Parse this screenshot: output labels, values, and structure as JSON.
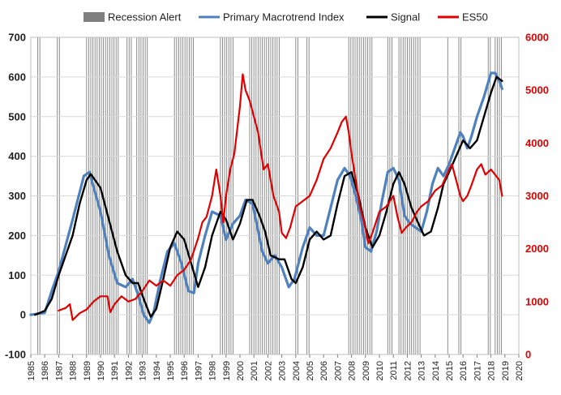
{
  "chart_data": {
    "type": "line",
    "title": "",
    "xlabel": "",
    "ylabel": "",
    "x_ticks": [
      "1985",
      "1986",
      "1987",
      "1988",
      "1989",
      "1990",
      "1991",
      "1992",
      "1993",
      "1994",
      "1995",
      "1996",
      "1997",
      "1998",
      "1999",
      "2000",
      "2001",
      "2002",
      "2003",
      "2004",
      "2005",
      "2006",
      "2007",
      "2008",
      "2009",
      "2010",
      "2011",
      "2012",
      "2013",
      "2014",
      "2015",
      "2016",
      "2017",
      "2018",
      "2019",
      "2020"
    ],
    "xlim": [
      1985,
      2020
    ],
    "ylim_left": [
      -100,
      700
    ],
    "yticks_left": [
      "-100",
      "0",
      "100",
      "200",
      "300",
      "400",
      "500",
      "600",
      "700"
    ],
    "ylim_right": [
      0,
      6000
    ],
    "yticks_right": [
      "0",
      "1000",
      "2000",
      "3000",
      "4000",
      "5000",
      "6000"
    ],
    "grid": "horizontal",
    "legend_placement": "top",
    "legend": [
      {
        "label": "Recession Alert",
        "color": "#7f7f7f",
        "kind": "bar"
      },
      {
        "label": "Primary Macrotrend Index",
        "color": "#4f81bd",
        "kind": "line"
      },
      {
        "label": "Signal",
        "color": "#000000",
        "kind": "line"
      },
      {
        "label": "ES50",
        "color": "#e00000",
        "kind": "line"
      }
    ],
    "recession_alert_periods": [
      [
        1985.5,
        1985.7
      ],
      [
        1986.9,
        1987.2
      ],
      [
        1989.0,
        1991.4
      ],
      [
        1991.9,
        1992.3
      ],
      [
        1992.6,
        1993.5
      ],
      [
        1995.3,
        1996.8
      ],
      [
        1998.6,
        1999.6
      ],
      [
        2000.7,
        2002.9
      ],
      [
        2004.0,
        2004.3
      ],
      [
        2004.8,
        2005.0
      ],
      [
        2007.8,
        2009.6
      ],
      [
        2010.6,
        2011.0
      ],
      [
        2011.4,
        2013.0
      ],
      [
        2014.9,
        2015.0
      ],
      [
        2015.7,
        2016.0
      ],
      [
        2017.8,
        2018.0
      ],
      [
        2018.3,
        2018.8
      ]
    ],
    "series": [
      {
        "name": "Primary Macrotrend Index",
        "axis": "left",
        "color": "#4f81bd",
        "x": [
          1985.0,
          1986.0,
          1986.5,
          1987.0,
          1988.0,
          1988.8,
          1989.2,
          1990.0,
          1990.6,
          1991.2,
          1991.8,
          1992.3,
          1992.7,
          1993.1,
          1993.5,
          1993.8,
          1994.3,
          1994.8,
          1995.3,
          1995.8,
          1996.3,
          1996.7,
          1997.0,
          1997.5,
          1998.0,
          1998.6,
          1999.0,
          1999.5,
          2000.0,
          2000.4,
          2000.9,
          2001.2,
          2001.6,
          2002.0,
          2002.5,
          2003.0,
          2003.5,
          2003.9,
          2004.5,
          2005.0,
          2005.5,
          2006.0,
          2006.5,
          2007.0,
          2007.5,
          2007.9,
          2008.3,
          2008.7,
          2009.0,
          2009.4,
          2009.8,
          2010.2,
          2010.6,
          2011.0,
          2011.4,
          2011.8,
          2012.2,
          2012.6,
          2013.0,
          2013.4,
          2013.8,
          2014.2,
          2014.6,
          2015.0,
          2015.4,
          2015.8,
          2016.0,
          2016.3,
          2016.6,
          2017.0,
          2017.5,
          2018.0,
          2018.3,
          2018.6,
          2018.8
        ],
        "y": [
          0,
          5,
          60,
          110,
          240,
          350,
          360,
          260,
          150,
          80,
          70,
          90,
          50,
          0,
          -20,
          5,
          90,
          160,
          180,
          130,
          60,
          55,
          130,
          200,
          260,
          250,
          190,
          230,
          250,
          290,
          280,
          230,
          160,
          130,
          150,
          120,
          70,
          90,
          170,
          220,
          200,
          200,
          270,
          340,
          370,
          350,
          300,
          240,
          170,
          160,
          210,
          290,
          360,
          370,
          340,
          250,
          230,
          220,
          210,
          260,
          330,
          370,
          350,
          380,
          420,
          460,
          450,
          420,
          450,
          500,
          550,
          610,
          610,
          590,
          570
        ]
      },
      {
        "name": "Signal",
        "axis": "left",
        "color": "#000000",
        "x": [
          1985.3,
          1986.0,
          1986.5,
          1987.0,
          1988.0,
          1988.5,
          1989.0,
          1989.3,
          1990.0,
          1990.6,
          1991.2,
          1991.8,
          1992.3,
          1992.7,
          1993.1,
          1993.6,
          1994.0,
          1994.5,
          1995.0,
          1995.5,
          1996.0,
          1996.5,
          1997.0,
          1997.5,
          1998.0,
          1998.6,
          1999.0,
          1999.5,
          2000.0,
          2000.5,
          2000.9,
          2001.4,
          2001.8,
          2002.2,
          2002.8,
          2003.2,
          2003.7,
          2004.0,
          2004.5,
          2005.0,
          2005.5,
          2006.0,
          2006.5,
          2007.0,
          2007.5,
          2008.0,
          2008.5,
          2009.0,
          2009.5,
          2010.0,
          2010.5,
          2011.0,
          2011.4,
          2011.8,
          2012.3,
          2012.8,
          2013.2,
          2013.7,
          2014.2,
          2014.6,
          2015.0,
          2015.5,
          2016.0,
          2016.5,
          2017.0,
          2017.5,
          2018.0,
          2018.4,
          2018.8
        ],
        "y": [
          0,
          10,
          40,
          100,
          200,
          280,
          340,
          355,
          320,
          240,
          160,
          100,
          80,
          80,
          40,
          -5,
          15,
          90,
          170,
          210,
          190,
          130,
          70,
          120,
          200,
          260,
          240,
          190,
          230,
          290,
          290,
          250,
          210,
          150,
          140,
          140,
          90,
          80,
          120,
          190,
          210,
          190,
          200,
          280,
          350,
          360,
          300,
          220,
          170,
          200,
          260,
          330,
          360,
          330,
          270,
          230,
          200,
          210,
          270,
          330,
          360,
          400,
          440,
          420,
          440,
          500,
          560,
          600,
          590
        ]
      },
      {
        "name": "ES50",
        "axis": "right",
        "color": "#e00000",
        "x": [
          1987.0,
          1987.5,
          1987.8,
          1988.0,
          1988.5,
          1989.0,
          1989.5,
          1990.0,
          1990.5,
          1990.7,
          1991.0,
          1991.5,
          1992.0,
          1992.5,
          1993.0,
          1993.5,
          1994.0,
          1994.5,
          1995.0,
          1995.5,
          1996.0,
          1996.5,
          1997.0,
          1997.3,
          1997.6,
          1998.0,
          1998.3,
          1998.6,
          1998.8,
          1999.0,
          1999.3,
          1999.6,
          2000.0,
          2000.2,
          2000.4,
          2000.7,
          2001.0,
          2001.3,
          2001.7,
          2002.0,
          2002.4,
          2002.8,
          2003.0,
          2003.3,
          2003.6,
          2004.0,
          2004.5,
          2005.0,
          2005.5,
          2006.0,
          2006.5,
          2007.0,
          2007.3,
          2007.6,
          2007.8,
          2008.0,
          2008.3,
          2008.6,
          2008.9,
          2009.2,
          2009.5,
          2010.0,
          2010.5,
          2011.0,
          2011.3,
          2011.6,
          2011.9,
          2012.3,
          2012.7,
          2013.0,
          2013.5,
          2014.0,
          2014.5,
          2015.0,
          2015.2,
          2015.5,
          2015.8,
          2016.0,
          2016.3,
          2016.6,
          2017.0,
          2017.3,
          2017.6,
          2018.0,
          2018.3,
          2018.6,
          2018.8
        ],
        "y": [
          830,
          880,
          950,
          650,
          780,
          850,
          1000,
          1100,
          1100,
          800,
          950,
          1100,
          1000,
          1050,
          1200,
          1400,
          1300,
          1400,
          1300,
          1500,
          1600,
          1800,
          2200,
          2500,
          2600,
          3000,
          3500,
          3000,
          2500,
          3000,
          3500,
          3800,
          4700,
          5300,
          5000,
          4800,
          4500,
          4200,
          3500,
          3600,
          3000,
          2700,
          2300,
          2200,
          2400,
          2800,
          2900,
          3000,
          3300,
          3700,
          3900,
          4200,
          4400,
          4500,
          4200,
          3800,
          3300,
          2800,
          2500,
          2100,
          2300,
          2700,
          2800,
          3000,
          2600,
          2300,
          2400,
          2500,
          2700,
          2800,
          2900,
          3100,
          3200,
          3500,
          3600,
          3300,
          3000,
          2900,
          3000,
          3200,
          3500,
          3600,
          3400,
          3500,
          3400,
          3300,
          3000
        ]
      }
    ]
  }
}
